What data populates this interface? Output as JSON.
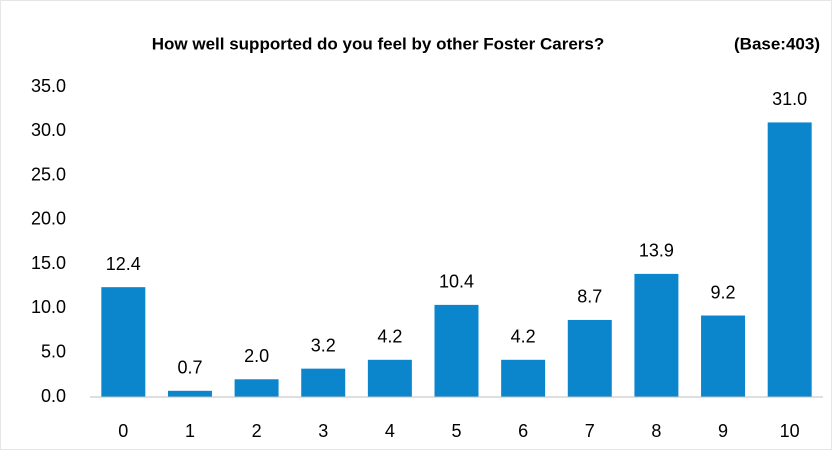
{
  "chart_data": {
    "type": "bar",
    "title": "How well supported do you feel by other Foster Carers?",
    "subtitle": "(Base:403)",
    "categories": [
      "0",
      "1",
      "2",
      "3",
      "4",
      "5",
      "6",
      "7",
      "8",
      "9",
      "10"
    ],
    "values": [
      12.4,
      0.7,
      2.0,
      3.2,
      4.2,
      10.4,
      4.2,
      8.7,
      13.9,
      9.2,
      31.0
    ],
    "value_labels": [
      "12.4",
      "0.7",
      "2.0",
      "3.2",
      "4.2",
      "10.4",
      "4.2",
      "8.7",
      "13.9",
      "9.2",
      "31.0"
    ],
    "color": "#0b85cc",
    "ylim": [
      0,
      35
    ],
    "yticks": [
      {
        "value": 0,
        "label": "0.0"
      },
      {
        "value": 5,
        "label": "5.0"
      },
      {
        "value": 10,
        "label": "10.0"
      },
      {
        "value": 15,
        "label": "15.0"
      },
      {
        "value": 20,
        "label": "20.0"
      },
      {
        "value": 25,
        "label": "25.0"
      },
      {
        "value": 30,
        "label": "30.0"
      },
      {
        "value": 35,
        "label": "35.0"
      }
    ],
    "grid": false
  }
}
